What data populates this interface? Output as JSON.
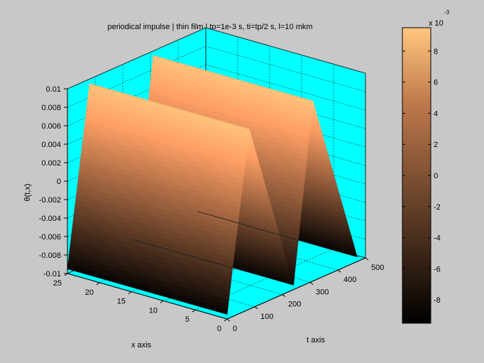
{
  "chart_data": {
    "type": "surface",
    "title": "periodical impulse | thin film | tp=1e-3 s, ti=tp/2 s, l=10 mkm",
    "xlabel": "x axis",
    "ylabel": "t axis",
    "zlabel": "θ(t,x)",
    "x_ticks": [
      "0",
      "5",
      "10",
      "15",
      "20",
      "25"
    ],
    "t_ticks": [
      "0",
      "100",
      "200",
      "300",
      "400",
      "500"
    ],
    "z_ticks": [
      "-0.01",
      "-0.008",
      "-0.006",
      "-0.004",
      "-0.002",
      "0",
      "0.002",
      "0.004",
      "0.006",
      "0.008",
      "0.01"
    ],
    "xlim": [
      0,
      25
    ],
    "tlim": [
      0,
      500
    ],
    "zlim": [
      -0.01,
      0.01
    ],
    "grid": true,
    "axes_background": "#00ffff",
    "colormap": "copper",
    "surface_profile": {
      "t": [
        0,
        80,
        240,
        310,
        470
      ],
      "theta": [
        -0.0095,
        0.0095,
        -0.0095,
        0.0095,
        -0.0095
      ]
    },
    "colorbar": {
      "exponent_label": "x 10",
      "exponent": "-3",
      "ticks": [
        "-8",
        "-6",
        "-4",
        "-2",
        "0",
        "2",
        "4",
        "6",
        "8"
      ],
      "range": [
        -9.5,
        9.5
      ]
    }
  }
}
